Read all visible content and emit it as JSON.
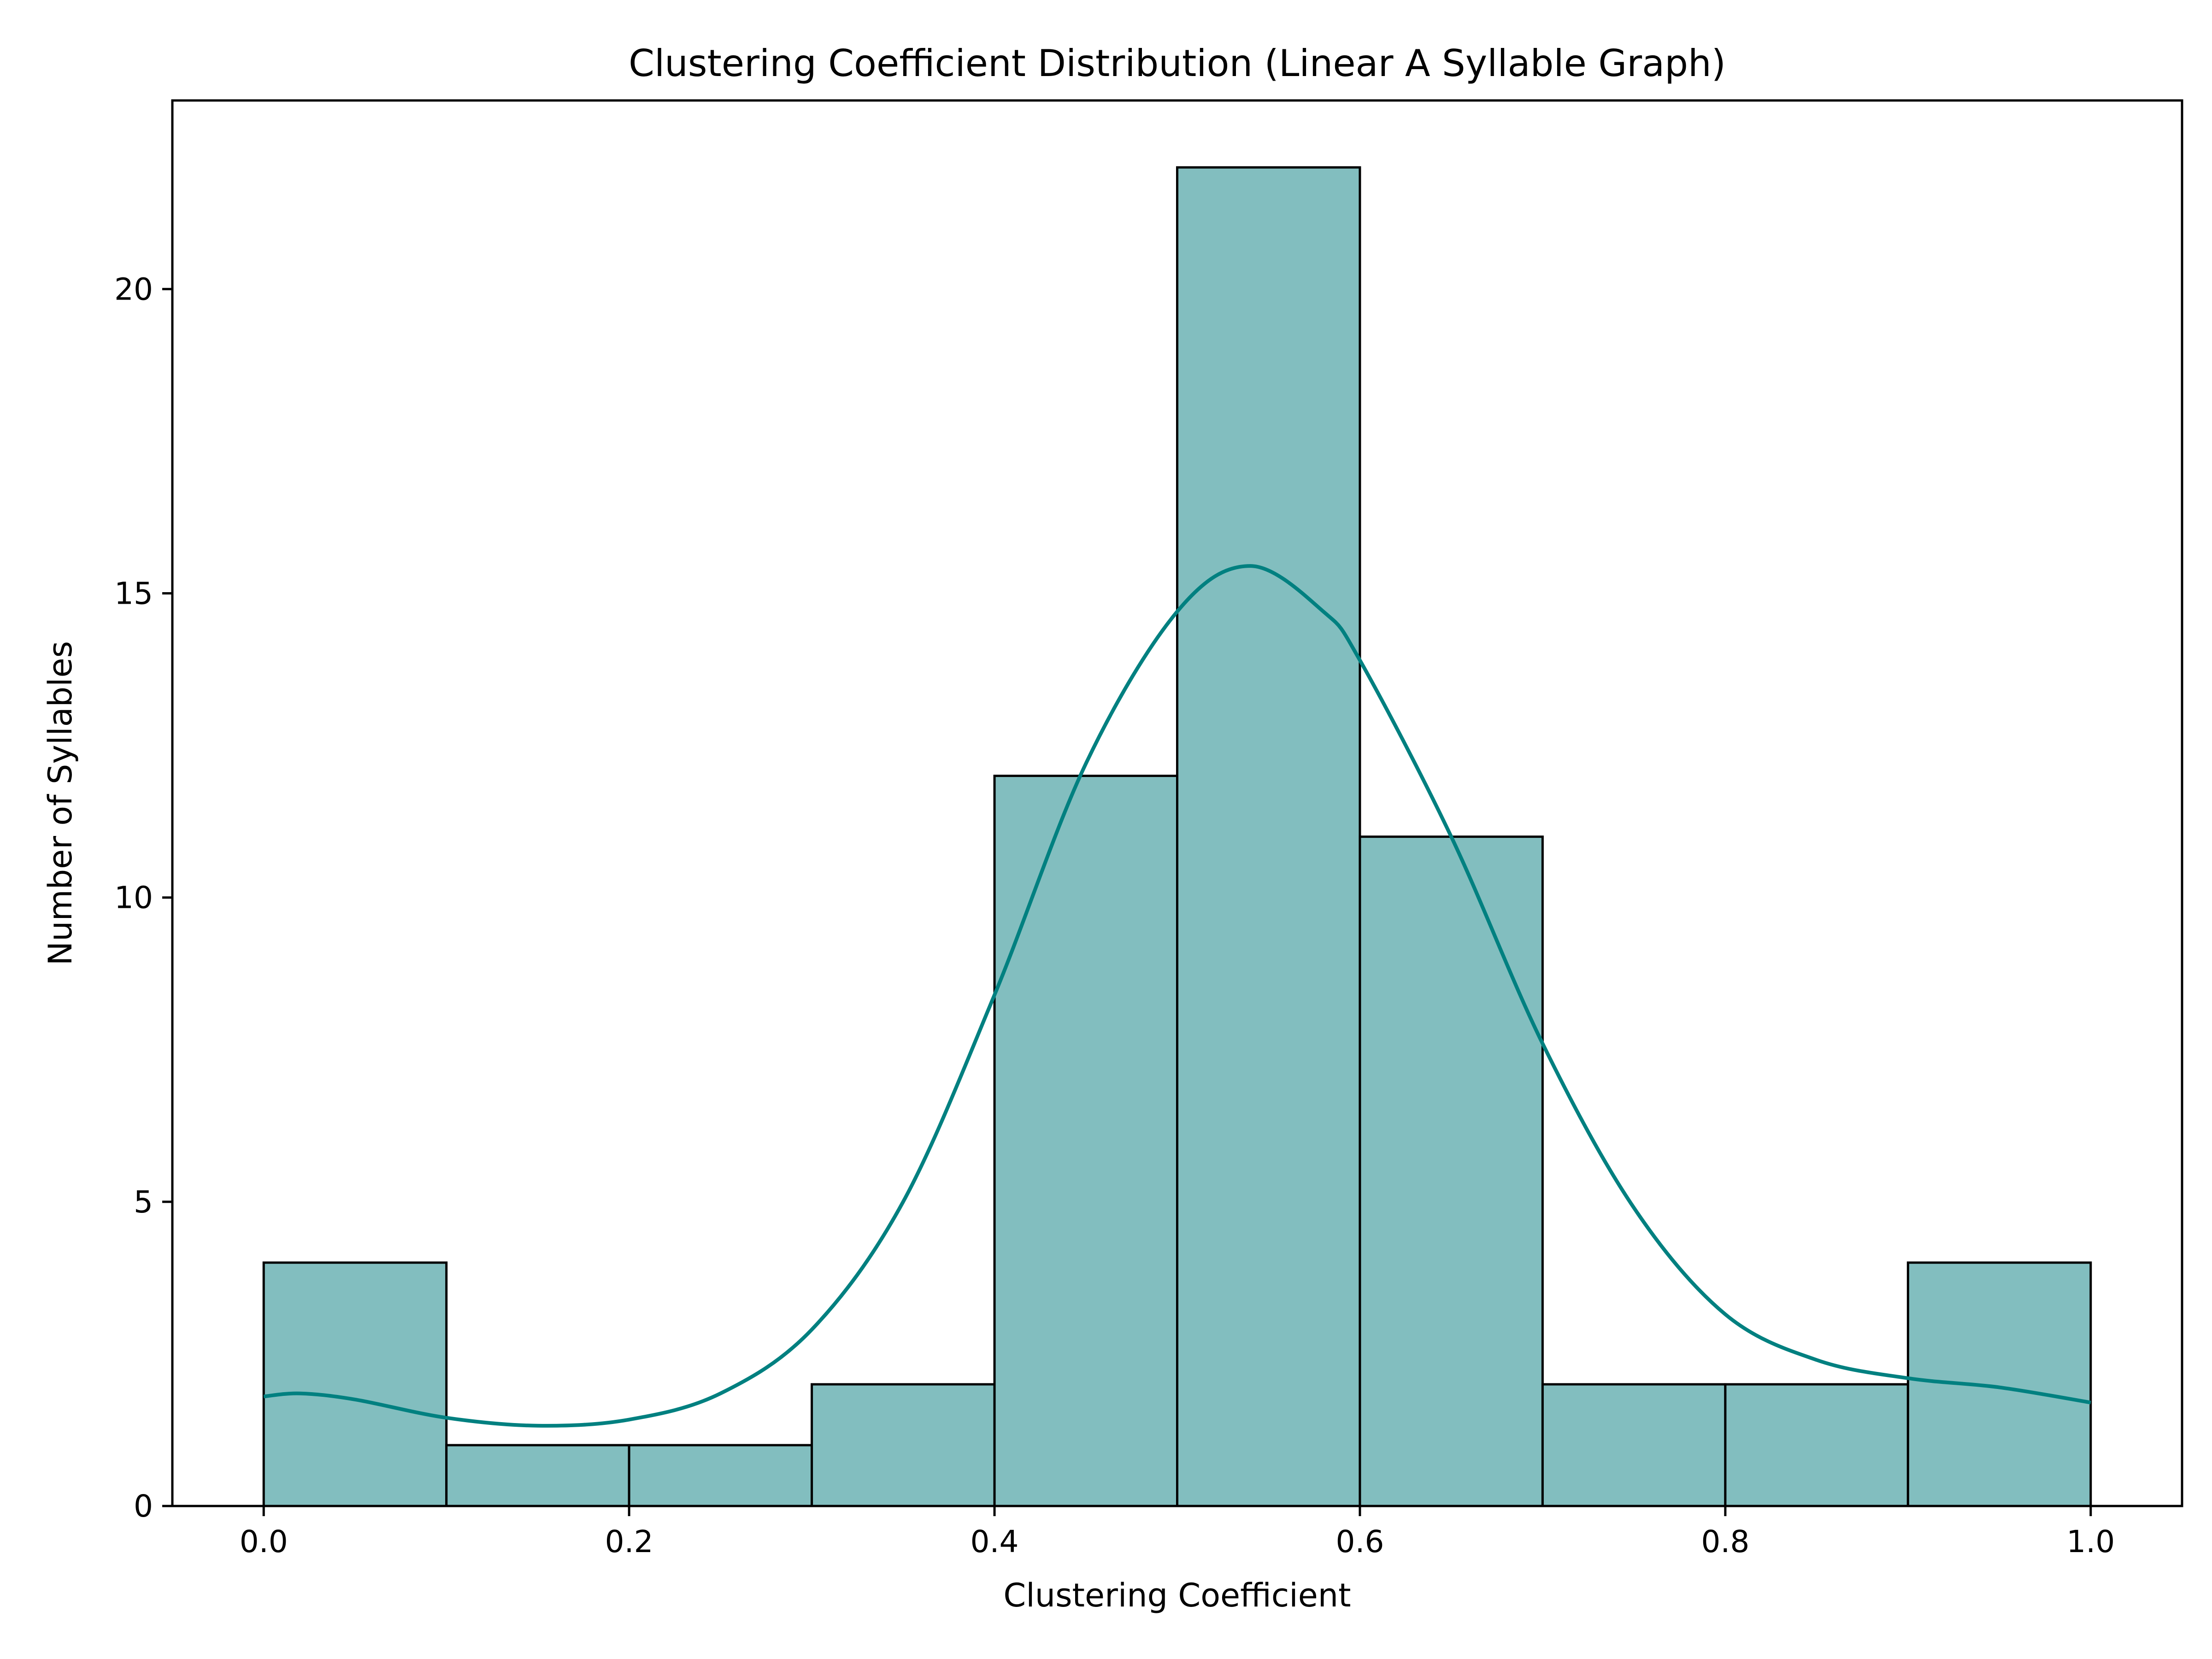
{
  "chart_data": {
    "type": "bar",
    "subtype": "histogram",
    "title": "Clustering Coefficient Distribution (Linear A Syllable Graph)",
    "xlabel": "Clustering Coefficient",
    "ylabel": "Number of Syllables",
    "xlim": [
      -0.05,
      1.05
    ],
    "ylim": [
      0,
      23.1
    ],
    "bin_edges": [
      0.0,
      0.1,
      0.2,
      0.3,
      0.4,
      0.5,
      0.6,
      0.7,
      0.8,
      0.9,
      1.0
    ],
    "values": [
      4,
      1,
      1,
      2,
      12,
      22,
      11,
      2,
      2,
      4
    ],
    "x_ticks": [
      0.0,
      0.2,
      0.4,
      0.6,
      0.8,
      1.0
    ],
    "x_tick_labels": [
      "0.0",
      "0.2",
      "0.4",
      "0.6",
      "0.8",
      "1.0"
    ],
    "y_ticks": [
      0,
      5,
      10,
      15,
      20
    ],
    "y_tick_labels": [
      "0",
      "5",
      "10",
      "15",
      "20"
    ],
    "grid": false,
    "kde": {
      "x": [
        0.0,
        0.02,
        0.05,
        0.1,
        0.15,
        0.2,
        0.25,
        0.3,
        0.35,
        0.4,
        0.45,
        0.5,
        0.54,
        0.58,
        0.6,
        0.65,
        0.7,
        0.75,
        0.8,
        0.85,
        0.9,
        0.95,
        1.0
      ],
      "y": [
        1.8,
        1.85,
        1.75,
        1.45,
        1.32,
        1.42,
        1.85,
        2.9,
        5.0,
        8.4,
        12.2,
        14.7,
        15.45,
        14.7,
        13.9,
        11.0,
        7.6,
        4.9,
        3.15,
        2.4,
        2.1,
        1.95,
        1.7
      ]
    },
    "colors": {
      "bar_fill": "#82bebf",
      "bar_edge": "#000000",
      "kde_line": "#008080"
    }
  }
}
